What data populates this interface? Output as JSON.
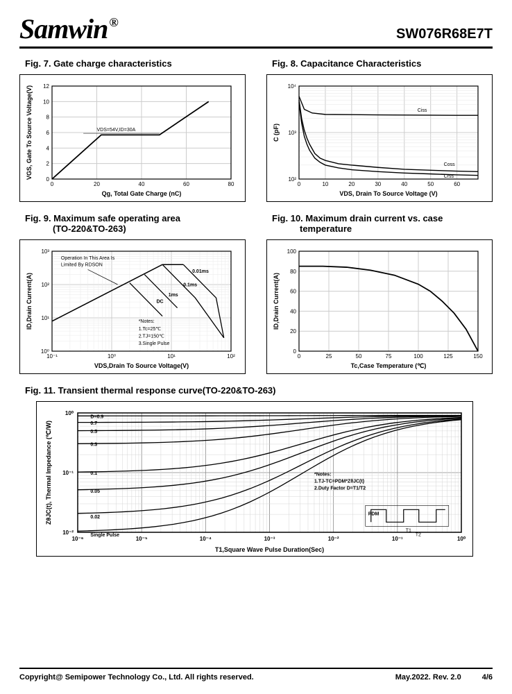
{
  "header": {
    "brand": "Samwin",
    "reg": "®",
    "partno": "SW076R68E7T"
  },
  "fig7": {
    "title": "Fig. 7. Gate charge characteristics",
    "ylabel": "VGS, Gate To  Source Voltage(V)",
    "xlabel": "Qg, Total Gate Charge (nC)",
    "xticks": [
      "0",
      "20",
      "40",
      "60",
      "80"
    ],
    "yticks": [
      "0",
      "2",
      "4",
      "6",
      "8",
      "10",
      "12"
    ],
    "annotation": "VDS=54V,ID=30A",
    "line": [
      [
        0,
        0
      ],
      [
        22,
        5.7
      ],
      [
        48,
        5.7
      ],
      [
        70,
        10
      ]
    ]
  },
  "fig8": {
    "title": "Fig. 8. Capacitance Characteristics",
    "ylabel": "C (pF)",
    "xlabel": "VDS, Drain To Source Voltage (V)",
    "xticks": [
      "0",
      "10",
      "20",
      "30",
      "40",
      "50",
      "60"
    ],
    "yticks": [
      "10²",
      "10³",
      "10⁴"
    ],
    "labels": {
      "ciss": "Ciss",
      "coss": "Coss",
      "crss": "Crss"
    },
    "ciss": [
      [
        0,
        3.78
      ],
      [
        2,
        3.5
      ],
      [
        5,
        3.42
      ],
      [
        10,
        3.39
      ],
      [
        30,
        3.38
      ],
      [
        60,
        3.37
      ],
      [
        68,
        3.37
      ]
    ],
    "coss": [
      [
        0,
        3.7
      ],
      [
        1,
        3.3
      ],
      [
        2,
        3.05
      ],
      [
        3,
        2.88
      ],
      [
        4,
        2.75
      ],
      [
        6,
        2.55
      ],
      [
        8,
        2.45
      ],
      [
        10,
        2.4
      ],
      [
        15,
        2.33
      ],
      [
        20,
        2.3
      ],
      [
        30,
        2.25
      ],
      [
        40,
        2.21
      ],
      [
        50,
        2.19
      ],
      [
        60,
        2.17
      ],
      [
        68,
        2.16
      ]
    ],
    "crss": [
      [
        0,
        3.65
      ],
      [
        1,
        3.2
      ],
      [
        2,
        2.92
      ],
      [
        3,
        2.75
      ],
      [
        4,
        2.62
      ],
      [
        6,
        2.45
      ],
      [
        8,
        2.36
      ],
      [
        10,
        2.3
      ],
      [
        15,
        2.24
      ],
      [
        20,
        2.2
      ],
      [
        30,
        2.16
      ],
      [
        40,
        2.13
      ],
      [
        50,
        2.11
      ],
      [
        60,
        2.09
      ],
      [
        68,
        2.08
      ]
    ]
  },
  "fig9": {
    "title": "Fig. 9. Maximum safe operating area",
    "subtitle": "(TO-220&TO-263)",
    "ylabel": "ID,Drain Current(A)",
    "xlabel": "VDS,Drain To Source Voltage(V)",
    "xticks": [
      "10⁻¹",
      "10⁰",
      "10¹",
      "10²"
    ],
    "yticks": [
      "10⁰",
      "10¹",
      "10²",
      "10³"
    ],
    "note_top": "Operation In This Area Is\nLimited By RDSON",
    "curve_labels": {
      "dc": "DC",
      "c1": "1ms",
      "c2": "0.1ms",
      "c3": "0.01ms"
    },
    "notes": "*Notes:\n1.Tc=25℃\n2.TJ=150℃\n3.Single Pulse"
  },
  "fig10": {
    "title": "Fig. 10. Maximum drain current vs. case",
    "subtitle": "temperature",
    "ylabel": "ID,Drain Current(A)",
    "xlabel": "Tc,Case Temperature (℃)",
    "xticks": [
      "0",
      "25",
      "50",
      "75",
      "100",
      "125",
      "150"
    ],
    "yticks": [
      "0",
      "20",
      "40",
      "60",
      "80",
      "100"
    ],
    "line": [
      [
        0,
        85
      ],
      [
        20,
        85
      ],
      [
        40,
        84
      ],
      [
        60,
        81
      ],
      [
        80,
        76
      ],
      [
        100,
        67
      ],
      [
        110,
        60
      ],
      [
        120,
        50
      ],
      [
        130,
        38
      ],
      [
        140,
        22
      ],
      [
        150,
        0
      ]
    ]
  },
  "fig11": {
    "title": "Fig. 11. Transient thermal response curve(TO-220&TO-263)",
    "ylabel": "ZθJC(t), Thermal  Impedance (℃/W)",
    "xlabel": "T1,Square Wave Pulse Duration(Sec)",
    "xticks": [
      "10⁻⁶",
      "10⁻⁵",
      "10⁻⁴",
      "10⁻³",
      "10⁻²",
      "10⁻¹",
      "10⁰"
    ],
    "yticks": [
      "10⁻²",
      "10⁻¹",
      "10⁰"
    ],
    "d_labels": [
      "D=0.9",
      "0.7",
      "0.5",
      "0.3",
      "0.1",
      "0.05",
      "0.02",
      "Single Pulse"
    ],
    "d_starts": [
      -0.05,
      -0.16,
      -0.3,
      -0.52,
      -1.0,
      -1.3,
      -1.7,
      -2.0
    ],
    "notes": "*Notes:\n1.TJ-TC=PDM*ZθJC(t)\n2.Duty Factor D=T1/T2",
    "pdm_label": "PDM",
    "t1_label": "T1",
    "t2_label": "T2"
  },
  "footer": {
    "left": "Copyright@ Semipower Technology Co., Ltd. All rights reserved.",
    "date": "May.2022.",
    "rev": "Rev. 2.0",
    "page": "4/6"
  },
  "colors": {
    "line": "#000000",
    "grid": "#cccccc",
    "border": "#000000",
    "text": "#000000"
  }
}
